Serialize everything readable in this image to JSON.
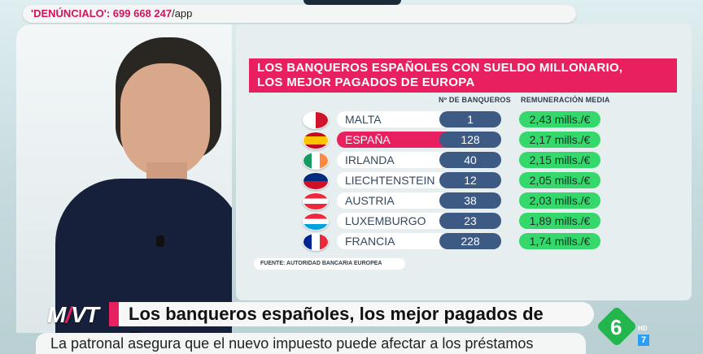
{
  "ticker": {
    "lead": "'DENÚNCIALO': 699 668 247",
    "tail": "/app"
  },
  "graphic": {
    "title_line1": "LOS BANQUEROS ESPAÑOLES CON SUELDO MILLONARIO,",
    "title_line2": "LOS MEJOR PAGADOS DE EUROPA",
    "col_bankers": "Nº DE BANQUEROS",
    "col_pay": "REMUNERACIÓN MEDIA",
    "rows": [
      {
        "country": "MALTA",
        "count": "1",
        "pay": "2,43 mills./€",
        "flag": "malta-flag-icon"
      },
      {
        "country": "ESPAÑA",
        "count": "128",
        "pay": "2,17 mills./€",
        "flag": "spain-flag-icon"
      },
      {
        "country": "IRLANDA",
        "count": "40",
        "pay": "2,15 mills./€",
        "flag": "ireland-flag-icon"
      },
      {
        "country": "LIECHTENSTEIN",
        "count": "12",
        "pay": "2,05 mills./€",
        "flag": "liechtenstein-flag-icon"
      },
      {
        "country": "AUSTRIA",
        "count": "38",
        "pay": "2,03 mills./€",
        "flag": "austria-flag-icon"
      },
      {
        "country": "LUXEMBURGO",
        "count": "23",
        "pay": "1,89 mills./€",
        "flag": "luxembourg-flag-icon"
      },
      {
        "country": "FRANCIA",
        "count": "228",
        "pay": "1,74 mills./€",
        "flag": "france-flag-icon"
      }
    ],
    "source": "FUENTE: AUTORIDAD BANCARIA EUROPEA"
  },
  "lower_third": {
    "logo_left": "M",
    "logo_right": "VT",
    "headline": "Los banqueros españoles, los mejor pagados de Europa",
    "subline": "La patronal asegura que el nuevo impuesto puede afectar a los préstamos"
  },
  "channel": {
    "number": "6",
    "hd": "HD",
    "seven": "7"
  },
  "colors": {
    "accent": "#e8205f",
    "count_bg": "#3d5a85",
    "pay_bg": "#35d96b"
  }
}
